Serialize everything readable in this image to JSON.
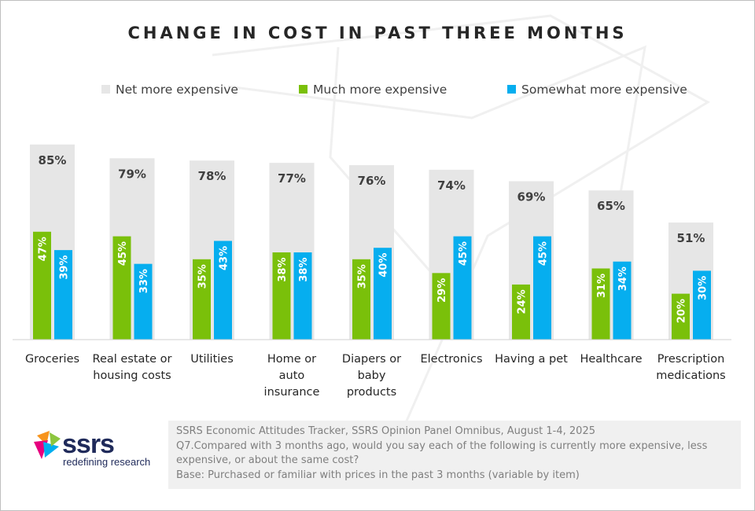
{
  "chart_data": {
    "type": "bar",
    "title": "CHANGE IN COST IN PAST THREE MONTHS",
    "categories": [
      [
        "Groceries"
      ],
      [
        "Real estate or",
        "housing costs"
      ],
      [
        "Utilities"
      ],
      [
        "Home or",
        "auto",
        "insurance"
      ],
      [
        "Diapers or",
        "baby",
        "products"
      ],
      [
        "Electronics"
      ],
      [
        "Having a pet"
      ],
      [
        "Healthcare"
      ],
      [
        "Prescription",
        "medications"
      ]
    ],
    "series": [
      {
        "name": "Net more expensive",
        "color": "#e6e6e6",
        "values": [
          85,
          79,
          78,
          77,
          76,
          74,
          69,
          65,
          51
        ]
      },
      {
        "name": "Much more expensive",
        "color": "#7ac00a",
        "values": [
          47,
          45,
          35,
          38,
          35,
          29,
          24,
          31,
          20
        ]
      },
      {
        "name": "Somewhat more expensive",
        "color": "#06aeef",
        "values": [
          39,
          33,
          43,
          38,
          40,
          45,
          45,
          34,
          30
        ]
      }
    ],
    "ylim": [
      0,
      100
    ],
    "value_suffix": "%",
    "legend": "top",
    "xlabel": "",
    "ylabel": ""
  },
  "legend": {
    "net": "Net more expensive",
    "much": "Much more expensive",
    "somewhat": "Somewhat more expensive"
  },
  "footer": {
    "line1": "SSRS Economic Attitudes Tracker, SSRS Opinion Panel Omnibus, August 1-4, 2025",
    "line2": "Q7.Compared with 3 months ago, would you say each of the following is currently more expensive, less",
    "line3": "expensive, or about the same cost?",
    "line4": "Base: Purchased or familiar with prices in the past 3 months (variable by item)"
  },
  "logo": {
    "word": "ssrs",
    "tagline": "redefining research",
    "colors": [
      "#f7941d",
      "#e6007e",
      "#00aeef",
      "#8dc63f"
    ]
  }
}
